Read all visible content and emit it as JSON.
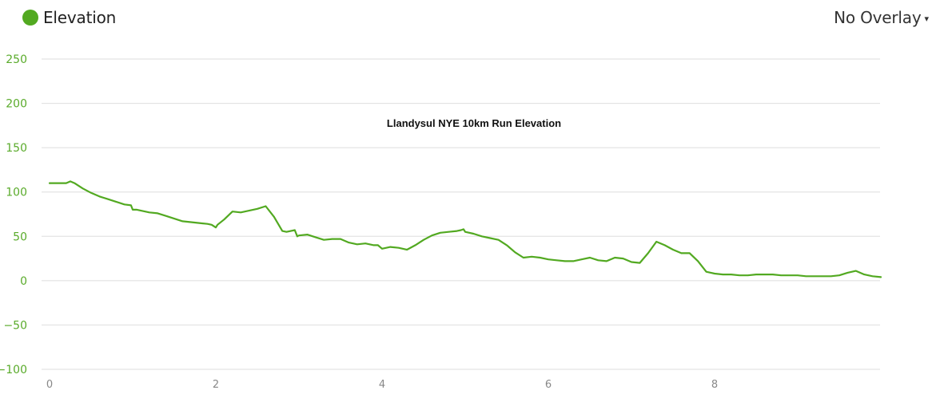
{
  "legend": {
    "label": "Elevation",
    "color": "#52a921"
  },
  "overlay_dropdown": {
    "label": "No Overlay",
    "caret": "▾"
  },
  "chart_data": {
    "type": "line",
    "title": "Llandysul NYE 10km Run Elevation",
    "xlabel": "",
    "ylabel": "",
    "xlim": [
      0,
      10
    ],
    "ylim": [
      -100,
      250
    ],
    "x_ticks": [
      "0",
      "2",
      "4",
      "6",
      "8"
    ],
    "y_ticks": [
      "250",
      "200",
      "150",
      "100",
      "50",
      "0",
      "-50",
      "-100"
    ],
    "grid": true,
    "series": [
      {
        "name": "Elevation",
        "color": "#52a921",
        "x": [
          0,
          0.1,
          0.2,
          0.25,
          0.3,
          0.4,
          0.5,
          0.6,
          0.7,
          0.8,
          0.9,
          0.98,
          1.0,
          1.05,
          1.1,
          1.2,
          1.3,
          1.4,
          1.5,
          1.6,
          1.7,
          1.8,
          1.9,
          1.95,
          2.0,
          2.02,
          2.1,
          2.2,
          2.3,
          2.4,
          2.5,
          2.6,
          2.7,
          2.8,
          2.85,
          2.95,
          2.98,
          3.0,
          3.1,
          3.2,
          3.3,
          3.4,
          3.5,
          3.6,
          3.7,
          3.8,
          3.9,
          3.95,
          4.0,
          4.1,
          4.2,
          4.3,
          4.4,
          4.5,
          4.6,
          4.7,
          4.8,
          4.9,
          4.95,
          4.98,
          5.0,
          5.1,
          5.2,
          5.3,
          5.4,
          5.5,
          5.6,
          5.7,
          5.8,
          5.9,
          6.0,
          6.1,
          6.2,
          6.3,
          6.4,
          6.5,
          6.6,
          6.7,
          6.8,
          6.9,
          7.0,
          7.1,
          7.2,
          7.3,
          7.4,
          7.5,
          7.6,
          7.7,
          7.8,
          7.9,
          8.0,
          8.1,
          8.2,
          8.3,
          8.4,
          8.5,
          8.6,
          8.7,
          8.8,
          8.9,
          9.0,
          9.1,
          9.2,
          9.3,
          9.4,
          9.5,
          9.6,
          9.7,
          9.8,
          9.9,
          10.0
        ],
        "y": [
          110,
          110,
          110,
          112,
          110,
          104,
          99,
          95,
          92,
          89,
          86,
          85,
          80,
          80,
          79,
          77,
          76,
          73,
          70,
          67,
          66,
          65,
          64,
          63,
          60,
          63,
          69,
          78,
          77,
          79,
          81,
          84,
          72,
          56,
          55,
          57,
          50,
          51,
          52,
          49,
          46,
          47,
          47,
          43,
          41,
          42,
          40,
          40,
          36,
          38,
          37,
          35,
          40,
          46,
          51,
          54,
          55,
          56,
          57,
          58,
          55,
          53,
          50,
          48,
          46,
          40,
          32,
          26,
          27,
          26,
          24,
          23,
          22,
          22,
          24,
          26,
          23,
          22,
          26,
          25,
          21,
          20,
          31,
          44,
          40,
          35,
          31,
          31,
          22,
          10,
          8,
          7,
          7,
          6,
          6,
          7,
          7,
          7,
          6,
          6,
          6,
          5,
          5,
          5,
          5,
          6,
          9,
          11,
          7,
          5,
          4
        ]
      }
    ]
  }
}
